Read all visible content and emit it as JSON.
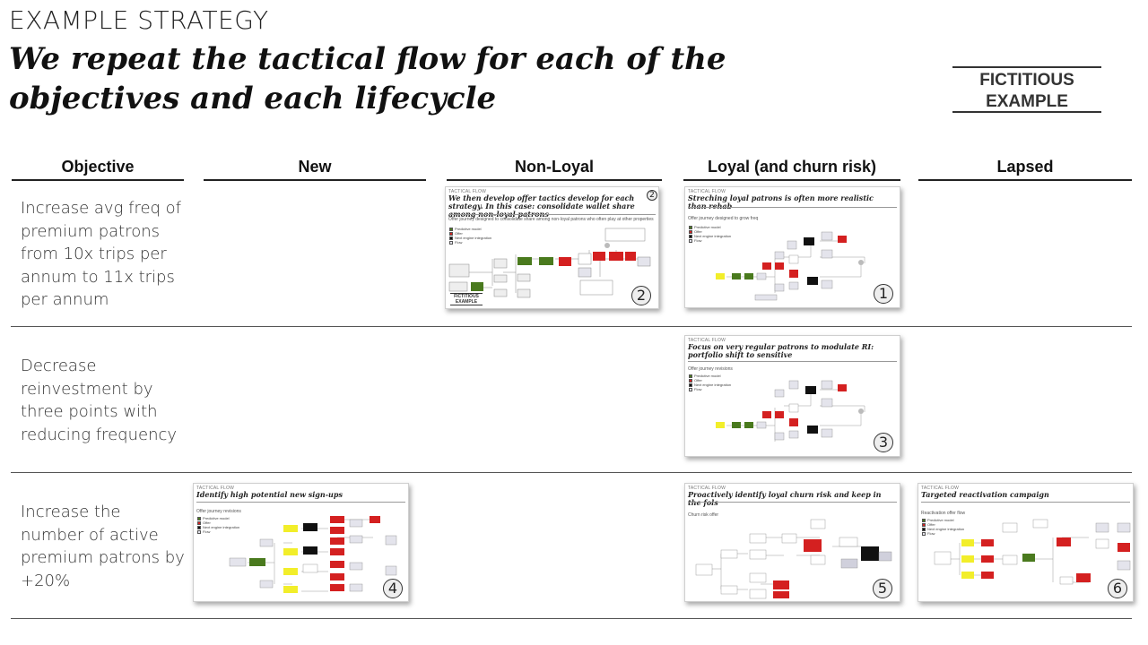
{
  "header": {
    "kicker": "EXAMPLE STRATEGY",
    "title": "We repeat the tactical flow for each of the objectives and each lifecycle",
    "stamp": "FICTITIOUS EXAMPLE"
  },
  "columns": [
    "Objective",
    "New",
    "Non-Loyal",
    "Loyal (and churn risk)",
    "Lapsed"
  ],
  "rows": [
    {
      "objective": "Increase avg freq of premium patrons from 10x trips per annum to 11x trips per annum"
    },
    {
      "objective": "Decrease reinvestment by three points with reducing frequency"
    },
    {
      "objective": "Increase the number of active premium patrons by +20%"
    }
  ],
  "thumbnails": [
    {
      "id": "t2",
      "label": "TACTICAL FLOW",
      "title": "We then develop offer tactics develop for each strategy. In this case: consolidate wallet share among non-loyal patrons",
      "subtitle": "Offer journey designed to consolidate share among non-loyal patrons who often play at other properties",
      "number": "2",
      "corner": "2",
      "stamp": "FICTITIOUS EXAMPLE"
    },
    {
      "id": "t1",
      "label": "TACTICAL FLOW",
      "title": "Streching loyal patrons is often more realistic than rehab",
      "subtitle": "Offer journey designed to grow freq",
      "number": "1"
    },
    {
      "id": "t3",
      "label": "TACTICAL FLOW",
      "title": "Focus on very regular patrons to modulate RI: portfolio shift to sensitive",
      "subtitle": "Offer journey revisions",
      "number": "3"
    },
    {
      "id": "t4",
      "label": "TACTICAL FLOW",
      "title": "Identify high potential new sign-ups",
      "subtitle": "Offer journey revisions",
      "number": "4"
    },
    {
      "id": "t5",
      "label": "TACTICAL FLOW",
      "title": "Proactively identify loyal churn risk and keep in the fols",
      "subtitle": "Churn risk offer",
      "number": "5"
    },
    {
      "id": "t6",
      "label": "TACTICAL FLOW",
      "title": "Targeted reactivation campaign",
      "subtitle": "Reactivation offer flow",
      "number": "6"
    }
  ],
  "legend": [
    "Predictive model",
    "Offer",
    "Next engine integration",
    "Flow"
  ],
  "colors": {
    "offer": "#d42020",
    "model": "#4a7a1e",
    "engine": "#111111",
    "flow": "#c9c9d6",
    "highlight": "#f2ee2a"
  }
}
